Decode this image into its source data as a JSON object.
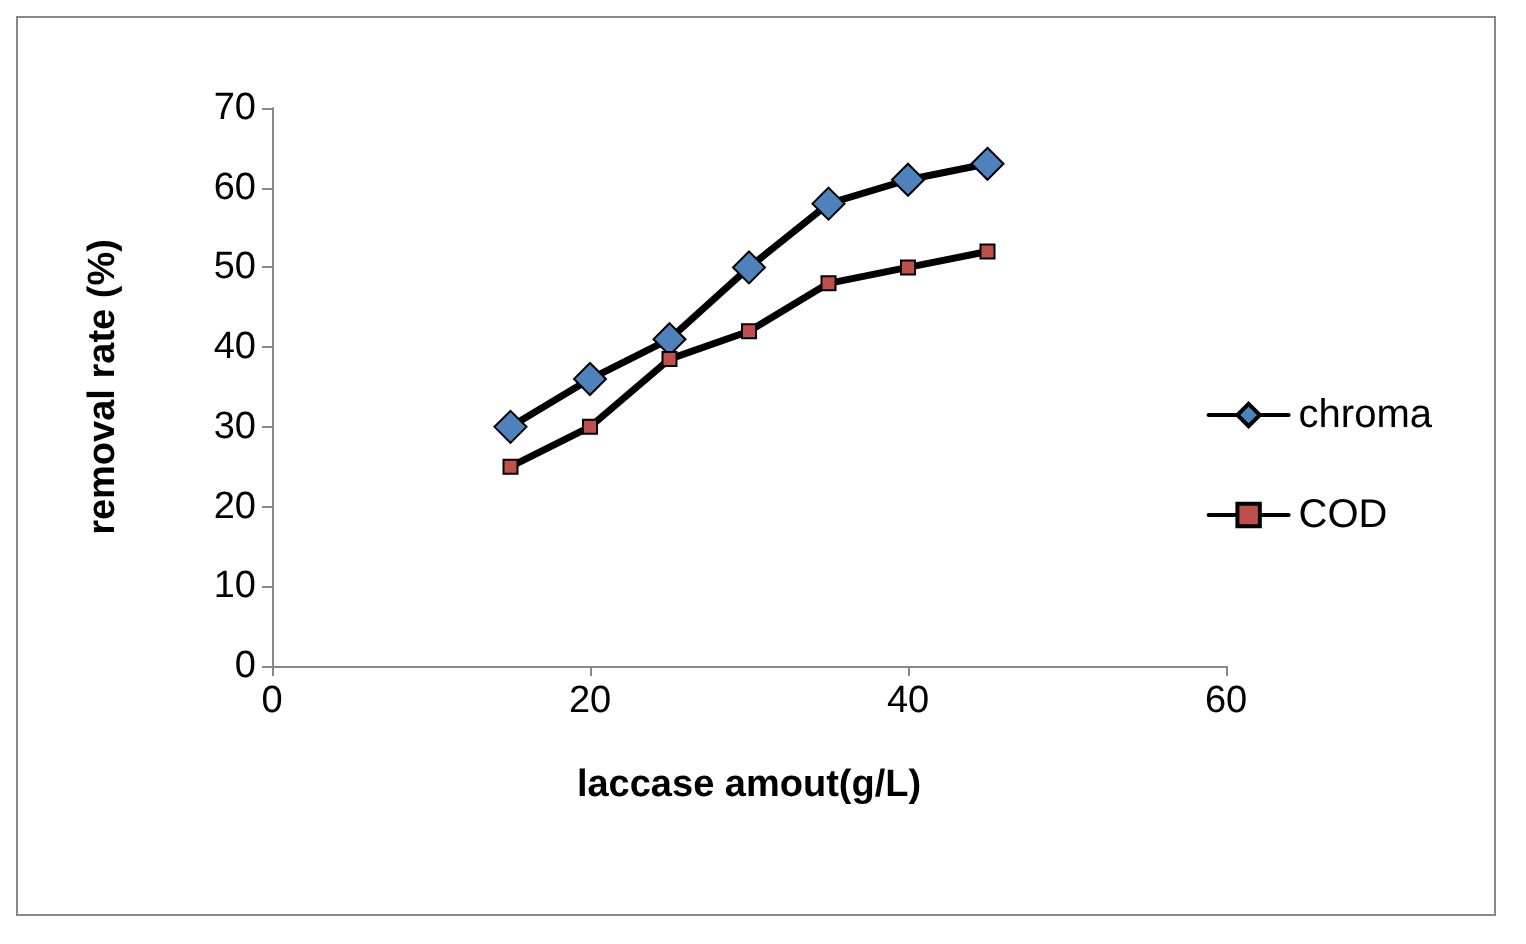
{
  "chart_data": {
    "type": "line",
    "xlabel": "laccase amout(g/L)",
    "ylabel": "removal rate (%)",
    "x": [
      15,
      20,
      25,
      30,
      35,
      40,
      45
    ],
    "series": [
      {
        "name": "chroma",
        "color": "#000000",
        "marker": "diamond",
        "values": [
          30,
          36,
          41,
          50,
          58,
          61,
          63
        ]
      },
      {
        "name": "COD",
        "color": "#000000",
        "marker": "square",
        "values": [
          25,
          30,
          38.5,
          42,
          48,
          50,
          52
        ]
      }
    ],
    "xlim": [
      0,
      60
    ],
    "xticks": [
      0,
      20,
      40,
      60
    ],
    "ylim": [
      0,
      70
    ],
    "yticks": [
      0,
      10,
      20,
      30,
      40,
      50,
      60,
      70
    ],
    "grid": false,
    "legend": "right",
    "line_style": "solid"
  }
}
